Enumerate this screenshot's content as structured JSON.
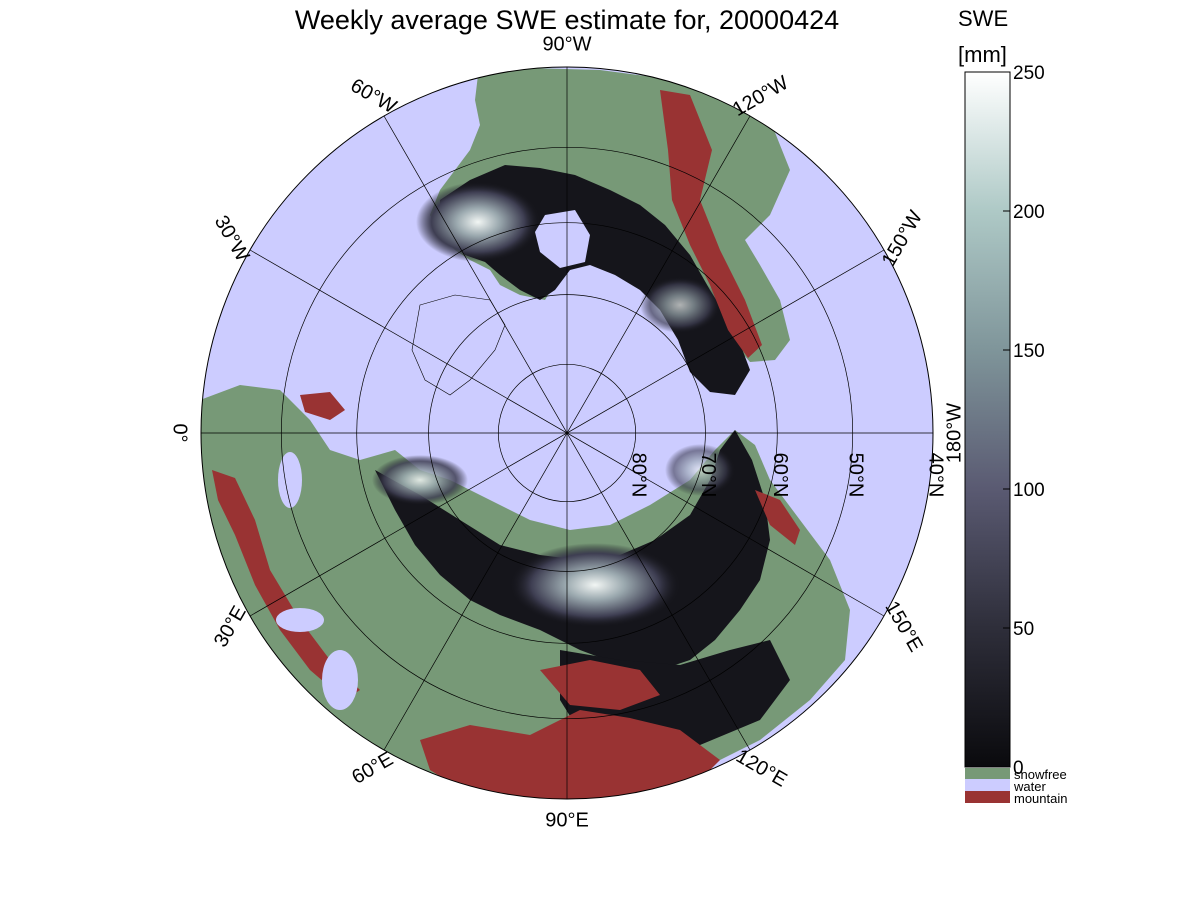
{
  "figure": {
    "title": "Weekly average SWE estimate for, 20000424"
  },
  "map": {
    "projection": "north polar stereographic",
    "longitude_labels": [
      {
        "deg": 0,
        "text": "0°"
      },
      {
        "deg": 30,
        "text": "30°W"
      },
      {
        "deg": 60,
        "text": "60°W"
      },
      {
        "deg": 90,
        "text": "90°W"
      },
      {
        "deg": 120,
        "text": "120°W"
      },
      {
        "deg": 150,
        "text": "150°W"
      },
      {
        "deg": 180,
        "text": "180°W"
      },
      {
        "deg": 210,
        "text": "150°E"
      },
      {
        "deg": 240,
        "text": "120°E"
      },
      {
        "deg": 270,
        "text": "90°E"
      },
      {
        "deg": 300,
        "text": "60°E"
      },
      {
        "deg": 330,
        "text": "30°E"
      }
    ],
    "latitude_labels": [
      {
        "lat": 80,
        "text": "80°N"
      },
      {
        "lat": 70,
        "text": "70°N"
      },
      {
        "lat": 60,
        "text": "60°N"
      },
      {
        "lat": 50,
        "text": "50°N"
      },
      {
        "lat": 40,
        "text": "40°N"
      }
    ],
    "colors": {
      "water": "#ccccff",
      "snowfree": "#779977",
      "mountain": "#993333",
      "swe_low": "#0a0a0d",
      "swe_mid": "#5a5a72",
      "swe_high": "#ffffff"
    }
  },
  "colorbar": {
    "label_line1": "SWE",
    "label_line2": "[mm]",
    "range": [
      0,
      250
    ],
    "ticks": [
      "0",
      "50",
      "100",
      "150",
      "200",
      "250"
    ],
    "categories": [
      {
        "name": "snowfree",
        "color": "#779977"
      },
      {
        "name": "water",
        "color": "#ccccff"
      },
      {
        "name": "mountain",
        "color": "#993333"
      }
    ]
  }
}
